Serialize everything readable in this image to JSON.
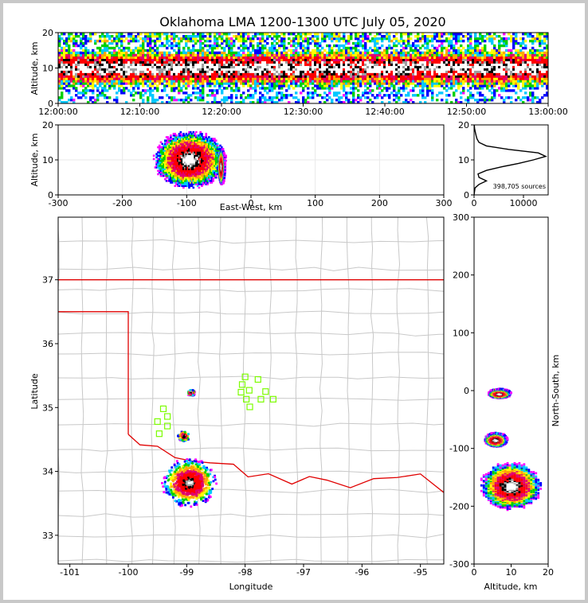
{
  "chart_data": [
    {
      "panel": "time-altitude",
      "type": "heatmap",
      "title": "Oklahoma LMA 1200-1300 UTC July 05, 2020",
      "xlabel": "",
      "ylabel": "Altitude, km",
      "x_ticks": [
        "12:00:00",
        "12:10:00",
        "12:20:00",
        "12:30:00",
        "12:40:00",
        "12:50:00",
        "13:00:00"
      ],
      "xlim_minutes": [
        0,
        60
      ],
      "y_ticks": [
        0,
        10,
        20
      ],
      "ylim": [
        0,
        20
      ],
      "core_altitude_km": [
        7,
        13
      ],
      "peak_altitude_km": 10
    },
    {
      "panel": "east-west-altitude",
      "type": "heatmap",
      "xlabel": "East-West, km",
      "ylabel": "Altitude, km",
      "x_ticks": [
        -300,
        -200,
        -100,
        0,
        100,
        200,
        300
      ],
      "xlim": [
        -300,
        300
      ],
      "y_ticks": [
        0,
        10,
        20
      ],
      "ylim": [
        0,
        20
      ],
      "cells": [
        {
          "x_km": -95,
          "alt_km": 10,
          "x_half_width_km": 55,
          "alt_half_height_km": 8
        },
        {
          "x_km": -45,
          "alt_km": 8,
          "x_half_width_km": 5,
          "alt_half_height_km": 5
        }
      ]
    },
    {
      "panel": "altitude-histogram",
      "type": "line",
      "xlabel": "",
      "ylabel": "",
      "x_ticks": [
        0,
        10000
      ],
      "xlim": [
        0,
        15000
      ],
      "y_ticks": [
        0,
        10,
        20
      ],
      "ylim": [
        0,
        20
      ],
      "annotation": "398,705 sources",
      "alt_km": [
        0,
        2,
        3,
        4,
        5,
        6,
        7,
        8,
        9,
        10,
        11,
        12,
        13,
        14,
        15,
        16,
        17,
        18,
        19,
        20
      ],
      "counts": [
        0,
        200,
        1000,
        2500,
        1000,
        800,
        2500,
        5500,
        9000,
        12000,
        14500,
        13000,
        7000,
        2500,
        1000,
        600,
        400,
        250,
        100,
        50
      ]
    },
    {
      "panel": "plan-view",
      "type": "scatter",
      "xlabel": "Longitude",
      "ylabel": "Latitude",
      "x_ticks": [
        -101,
        -100,
        -99,
        -98,
        -97,
        -96,
        -95
      ],
      "xlim": [
        -101.2,
        -94.6
      ],
      "y_ticks": [
        33,
        34,
        35,
        36,
        37
      ],
      "ylim": [
        32.55,
        37.98
      ],
      "storm_cells": [
        {
          "lon": -98.95,
          "lat": 33.82,
          "radius_deg": 0.45
        },
        {
          "lon": -99.05,
          "lat": 34.55,
          "radius_deg": 0.1
        },
        {
          "lon": -98.92,
          "lat": 35.23,
          "radius_deg": 0.06
        }
      ],
      "stations": [
        {
          "lon": -98.0,
          "lat": 35.48
        },
        {
          "lon": -97.78,
          "lat": 35.44
        },
        {
          "lon": -98.05,
          "lat": 35.36
        },
        {
          "lon": -98.07,
          "lat": 35.24
        },
        {
          "lon": -97.93,
          "lat": 35.27
        },
        {
          "lon": -97.65,
          "lat": 35.25
        },
        {
          "lon": -97.98,
          "lat": 35.13
        },
        {
          "lon": -97.73,
          "lat": 35.13
        },
        {
          "lon": -97.52,
          "lat": 35.13
        },
        {
          "lon": -97.92,
          "lat": 35.01
        },
        {
          "lon": -99.4,
          "lat": 34.98
        },
        {
          "lon": -99.33,
          "lat": 34.86
        },
        {
          "lon": -99.5,
          "lat": 34.78
        },
        {
          "lon": -99.33,
          "lat": 34.71
        },
        {
          "lon": -99.47,
          "lat": 34.59
        }
      ],
      "state_border_color": "#e00000",
      "county_line_color": "#c8c8c8",
      "station_color": "#7cfc00"
    },
    {
      "panel": "north-south-altitude",
      "type": "heatmap",
      "xlabel": "Altitude, km",
      "ylabel": "North-South, km",
      "x_ticks": [
        0,
        10,
        20
      ],
      "xlim": [
        0,
        20
      ],
      "y_ticks": [
        -300,
        -200,
        -100,
        0,
        100,
        200,
        300
      ],
      "ylim": [
        -300,
        300
      ],
      "cells": [
        {
          "ns_km": -165,
          "alt_km": 10,
          "ns_half_km": 40,
          "alt_half_km": 8
        },
        {
          "ns_km": -85,
          "alt_km": 6,
          "ns_half_km": 12,
          "alt_half_km": 3
        },
        {
          "ns_km": -5,
          "alt_km": 7,
          "ns_half_km": 8,
          "alt_half_km": 3
        }
      ]
    }
  ]
}
